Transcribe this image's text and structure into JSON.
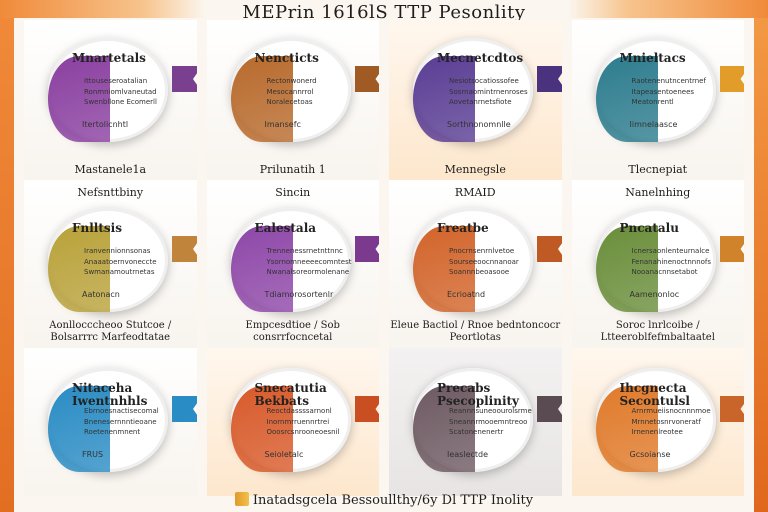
{
  "header": {
    "title": "MEPrin 1616lS TTP Pesonlity"
  },
  "footer": {
    "text": "Inatadsgcela Bessoullthy/6y Dl TTP Inolity"
  },
  "rows": [
    [
      {
        "title": "Mnartetals",
        "lines": [
          "Ittouseseroatalian",
          "Ronmniomlvaneutad",
          "Swenbllone Ecomerll"
        ],
        "sub": "Itertolicnhtl",
        "caption": "Mastanele1a",
        "color": "#8a3fa0",
        "ribbon": "#7a3f8f"
      },
      {
        "title": "Nencticts",
        "lines": [
          "Rectonwonerd",
          "Mesocannrrol",
          "Noralecetoas"
        ],
        "sub": "Imansefc",
        "caption": "Prilunatih 1",
        "color": "#b86a2c",
        "ribbon": "#a05b24"
      },
      {
        "title": "Mecnetcdtos",
        "lines": [
          "Nesiotsocatiossofee",
          "Sosrnaomintrnenroses",
          "Aovetanrnetsfiote"
        ],
        "sub": "Sorthnonomnlle",
        "caption": "Mennegsle",
        "color": "#5a3d94",
        "ribbon": "#4b327e"
      },
      {
        "title": "Mnieltacs",
        "lines": [
          "Raotenenutncentrnef",
          "Itapeasentoenees",
          "Meatonrentl"
        ],
        "sub": "Iimnelaasce",
        "caption": "Tlecnepiat",
        "color": "#2c7c8e",
        "ribbon": "#e19c2a"
      }
    ],
    [
      {
        "title": "Fnlltsis",
        "top": "Nefsnttbiny",
        "lines": [
          "Iranvennionnsonas",
          "Anaaatoernvoneccte",
          "Swmanamoutrnetas"
        ],
        "sub": "Aatonacn",
        "caption": "Aonllocccheoo Stutcoe / Bolsarrrc Marfeodtatae",
        "color": "#b9a23a",
        "ribbon": "#c0853a"
      },
      {
        "title": "Ealestala",
        "top": "Sincin",
        "lines": [
          "Trennenessrnetnttnnc",
          "Ysornomneeeecomntest",
          "Nwanalsoreormolenane"
        ],
        "sub": "Tdiamorosortenlr",
        "caption": "Empcesdtioe / Sob consrrfocncetal",
        "color": "#8e47a8",
        "ribbon": "#7b3a8e"
      },
      {
        "title": "Freatbe",
        "top": "RMAID",
        "lines": [
          "Pnocrnsenrnlvetoe",
          "Sourseeoocnnanoar",
          "Soannnbeoasooe"
        ],
        "sub": "Ecrioatnd",
        "caption": "Eleue Bactiol / Rnoe bedntoncocr Peortlotas",
        "color": "#d2642a",
        "ribbon": "#c05a25"
      },
      {
        "title": "Pncatalu",
        "top": "Nanelnhing",
        "lines": [
          "Icnersaonlenteurnalce",
          "Fenanahinenoctnnnofs",
          "Nooanacnnsetabot"
        ],
        "sub": "Aamenonloc",
        "caption": "Soroc lnrlcoibe / Ltteeroblfefmbaltaatel",
        "color": "#6a8e3a",
        "ribbon": "#d0832a"
      }
    ],
    [
      {
        "title": "Nitaceha Iwentnhhls",
        "lines": [
          "Ebrnoesnactisecomal",
          "Bnenesernnntieoane",
          "Roetenenmnent"
        ],
        "sub": "FRUS",
        "caption": "",
        "color": "#2a8cc4",
        "ribbon": "#2a8cc4"
      },
      {
        "title": "Snecatutia Bekbats",
        "lines": [
          "Reoctdassssarnonl",
          "Inornmrruennrtrei",
          "Ooosrcsnrooneoesnil"
        ],
        "sub": "Seioletalc",
        "caption": "",
        "color": "#d85a2a",
        "ribbon": "#c94e22"
      },
      {
        "title": "Precabs Psecoplinity",
        "lines": [
          "Reannnsuneoourolsrme",
          "Sneannrmooemntreoo",
          "Scatonenenertr"
        ],
        "sub": "Ieaslectde",
        "caption": "",
        "color": "#6e5a62",
        "ribbon": "#5a4a52"
      },
      {
        "title": "Ihcgnecta Secontulsl",
        "lines": [
          "Arnrmueiisnocnnnmoe",
          "Mrnnetosnrvoneratf",
          "Irnenenlreotee"
        ],
        "sub": "Gcsoianse",
        "caption": "",
        "color": "#e07a2a",
        "ribbon": "#c9652a"
      }
    ]
  ]
}
